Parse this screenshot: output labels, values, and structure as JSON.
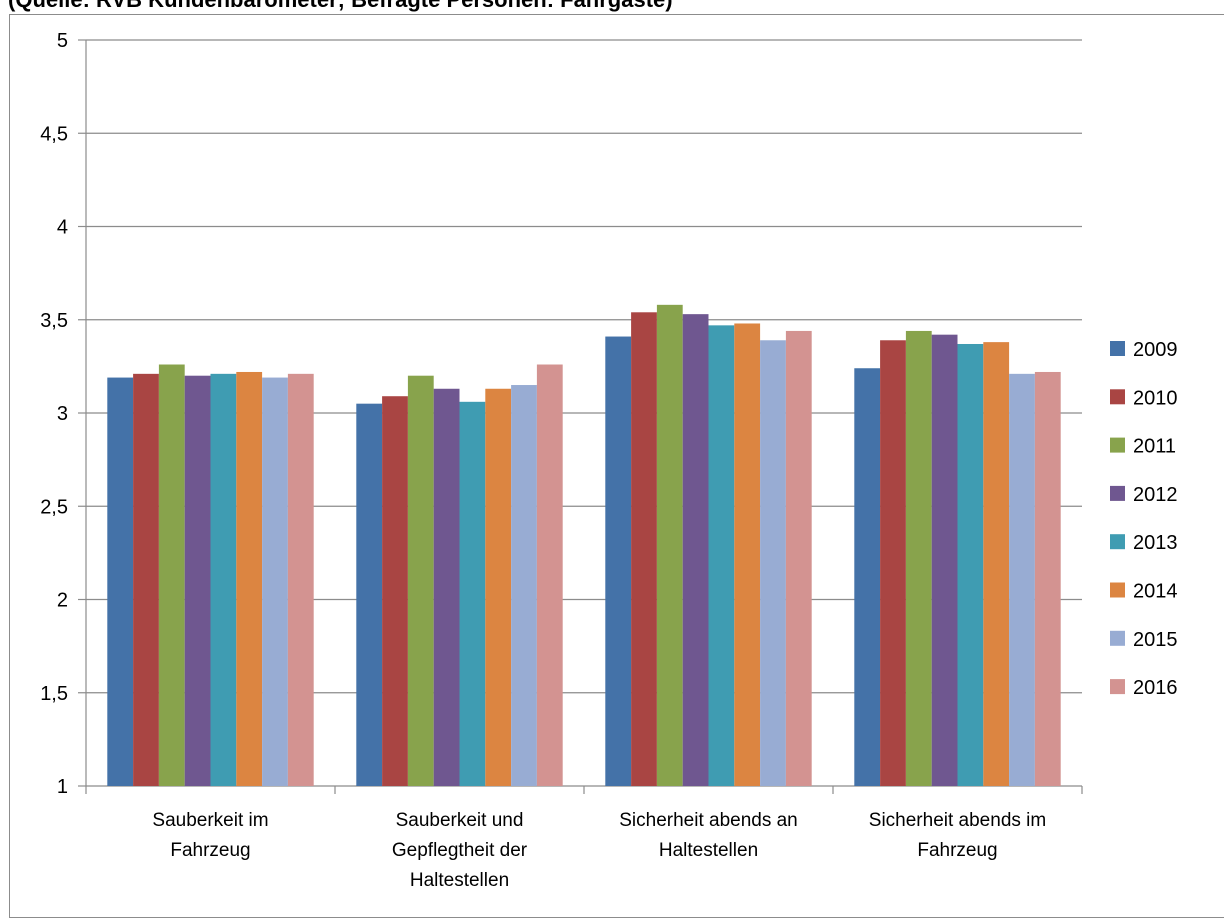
{
  "chart_data": {
    "type": "bar",
    "title": "(Quelle: RVB Kundenbarometer; Befragte Personen: Fahrgäste)",
    "xlabel": "",
    "ylabel": "",
    "ylim": [
      1,
      5
    ],
    "yticks": [
      "1",
      "1,5",
      "2",
      "2,5",
      "3",
      "3,5",
      "4",
      "4,5",
      "5"
    ],
    "ytick_values": [
      1,
      1.5,
      2,
      2.5,
      3,
      3.5,
      4,
      4.5,
      5
    ],
    "grid": true,
    "legend_position": "right",
    "categories": [
      [
        "Sauberkeit im",
        "Fahrzeug"
      ],
      [
        "Sauberkeit und",
        "Gepflegtheit der",
        "Haltestellen"
      ],
      [
        "Sicherheit abends an",
        "Haltestellen"
      ],
      [
        "Sicherheit abends im",
        "Fahrzeug"
      ]
    ],
    "series": [
      {
        "name": "2009",
        "color": "#4472a8",
        "values": [
          3.19,
          3.05,
          3.41,
          3.24
        ]
      },
      {
        "name": "2010",
        "color": "#a94543",
        "values": [
          3.21,
          3.09,
          3.54,
          3.39
        ]
      },
      {
        "name": "2011",
        "color": "#88a34c",
        "values": [
          3.26,
          3.2,
          3.58,
          3.44
        ]
      },
      {
        "name": "2012",
        "color": "#6f5790",
        "values": [
          3.2,
          3.13,
          3.53,
          3.42
        ]
      },
      {
        "name": "2013",
        "color": "#3f9cb2",
        "values": [
          3.21,
          3.06,
          3.47,
          3.37
        ]
      },
      {
        "name": "2014",
        "color": "#dc8541",
        "values": [
          3.22,
          3.13,
          3.48,
          3.38
        ]
      },
      {
        "name": "2015",
        "color": "#98acd3",
        "values": [
          3.19,
          3.15,
          3.39,
          3.21
        ]
      },
      {
        "name": "2016",
        "color": "#d39391",
        "values": [
          3.21,
          3.26,
          3.44,
          3.22
        ]
      }
    ]
  }
}
